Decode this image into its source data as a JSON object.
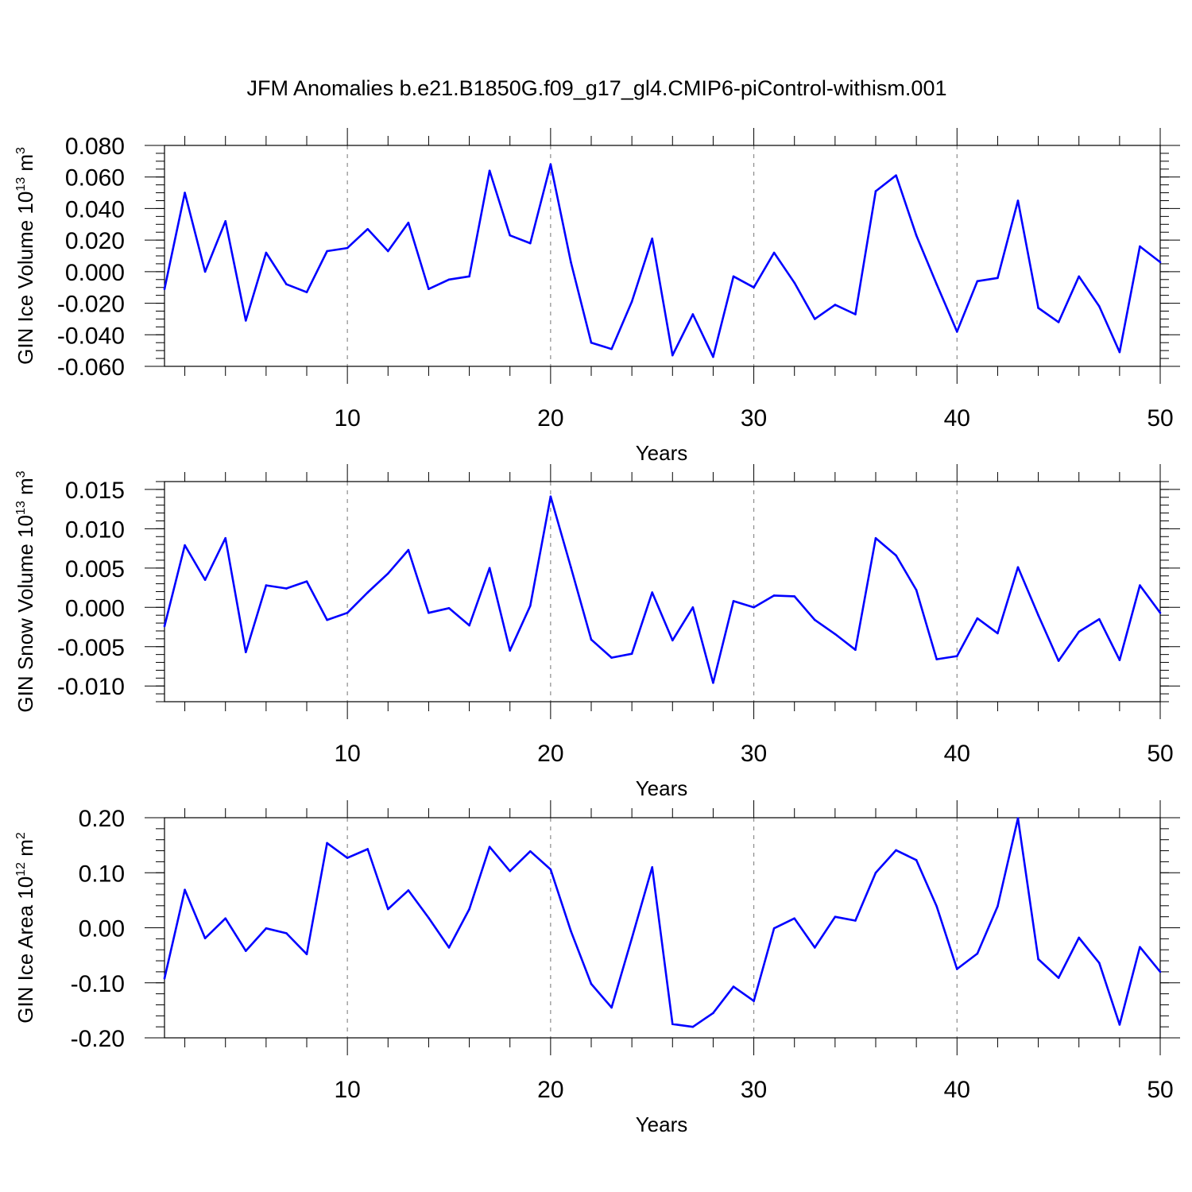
{
  "title": "JFM Anomalies b.e21.B1850G.f09_g17_gl4.CMIP6-piControl-withism.001",
  "line_color": "#0000ff",
  "chart_data": [
    {
      "type": "line",
      "title": "",
      "xlabel": "Years",
      "ylabel": {
        "main": "GIN Ice Volume 10",
        "exp1": "13",
        "mid": " m",
        "exp2": "3"
      },
      "xlim": [
        1,
        50
      ],
      "ylim": [
        -0.06,
        0.08
      ],
      "xticks": [
        10,
        20,
        30,
        40,
        50
      ],
      "yticks": [
        -0.06,
        -0.04,
        -0.02,
        0.0,
        0.02,
        0.04,
        0.06,
        0.08
      ],
      "ytick_labels": [
        "-0.060",
        "-0.040",
        "-0.020",
        "0.000",
        "0.020",
        "0.040",
        "0.060",
        "0.080"
      ],
      "y_minor_step": 0.005,
      "grid": "vertical dashed at major x ticks",
      "x": [
        1,
        2,
        3,
        4,
        5,
        6,
        7,
        8,
        9,
        10,
        11,
        12,
        13,
        14,
        15,
        16,
        17,
        18,
        19,
        20,
        21,
        22,
        23,
        24,
        25,
        26,
        27,
        28,
        29,
        30,
        31,
        32,
        33,
        34,
        35,
        36,
        37,
        38,
        39,
        40,
        41,
        42,
        43,
        44,
        45,
        46,
        47,
        48,
        49,
        50
      ],
      "values": [
        -0.011,
        0.05,
        0.0,
        0.032,
        -0.031,
        0.012,
        -0.008,
        -0.013,
        0.013,
        0.015,
        0.027,
        0.013,
        0.031,
        -0.011,
        -0.005,
        -0.003,
        0.064,
        0.023,
        0.018,
        0.068,
        0.006,
        -0.045,
        -0.049,
        -0.019,
        0.021,
        -0.053,
        -0.027,
        -0.054,
        -0.003,
        -0.01,
        0.012,
        -0.007,
        -0.03,
        -0.021,
        -0.027,
        0.051,
        0.061,
        0.023,
        -0.008,
        -0.038,
        -0.006,
        -0.004,
        0.045,
        -0.023,
        -0.032,
        -0.003,
        -0.022,
        -0.051,
        0.016,
        0.006
      ]
    },
    {
      "type": "line",
      "title": "",
      "xlabel": "Years",
      "ylabel": {
        "main": "GIN Snow Volume 10",
        "exp1": "13",
        "mid": " m",
        "exp2": "3"
      },
      "xlim": [
        1,
        50
      ],
      "ylim": [
        -0.012,
        0.016
      ],
      "xticks": [
        10,
        20,
        30,
        40,
        50
      ],
      "yticks": [
        -0.01,
        -0.005,
        0.0,
        0.005,
        0.01,
        0.015
      ],
      "ytick_labels": [
        "-0.010",
        "-0.005",
        "0.000",
        "0.005",
        "0.010",
        "0.015"
      ],
      "y_minor_step": 0.001,
      "grid": "vertical dashed at major x ticks",
      "x": [
        1,
        2,
        3,
        4,
        5,
        6,
        7,
        8,
        9,
        10,
        11,
        12,
        13,
        14,
        15,
        16,
        17,
        18,
        19,
        20,
        21,
        22,
        23,
        24,
        25,
        26,
        27,
        28,
        29,
        30,
        31,
        32,
        33,
        34,
        35,
        36,
        37,
        38,
        39,
        40,
        41,
        42,
        43,
        44,
        45,
        46,
        47,
        48,
        49,
        50
      ],
      "values": [
        -0.0024,
        0.0079,
        0.0035,
        0.0088,
        -0.0057,
        0.0028,
        0.0024,
        0.0033,
        -0.0016,
        -0.0007,
        0.0019,
        0.0043,
        0.0073,
        -0.0007,
        -0.0001,
        -0.0023,
        0.005,
        -0.0055,
        0.0002,
        0.0141,
        0.0051,
        -0.0041,
        -0.0064,
        -0.0059,
        0.0019,
        -0.0042,
        0.0,
        -0.0096,
        0.0008,
        0.0,
        0.0015,
        0.0014,
        -0.0016,
        -0.0034,
        -0.0054,
        0.0088,
        0.0066,
        0.0022,
        -0.0066,
        -0.0062,
        -0.0014,
        -0.0033,
        0.0051,
        -0.001,
        -0.0068,
        -0.0031,
        -0.0015,
        -0.0067,
        0.0028,
        -0.0007
      ]
    },
    {
      "type": "line",
      "title": "",
      "xlabel": "Years",
      "ylabel": {
        "main": "GIN Ice Area 10",
        "exp1": "12",
        "mid": " m",
        "exp2": "2"
      },
      "xlim": [
        1,
        50
      ],
      "ylim": [
        -0.2,
        0.2
      ],
      "xticks": [
        10,
        20,
        30,
        40,
        50
      ],
      "yticks": [
        -0.2,
        -0.1,
        0.0,
        0.1,
        0.2
      ],
      "ytick_labels": [
        "-0.20",
        "-0.10",
        "0.00",
        "0.10",
        "0.20"
      ],
      "y_minor_step": 0.02,
      "grid": "vertical dashed at major x ticks",
      "x": [
        1,
        2,
        3,
        4,
        5,
        6,
        7,
        8,
        9,
        10,
        11,
        12,
        13,
        14,
        15,
        16,
        17,
        18,
        19,
        20,
        21,
        22,
        23,
        24,
        25,
        26,
        27,
        28,
        29,
        30,
        31,
        32,
        33,
        34,
        35,
        36,
        37,
        38,
        39,
        40,
        41,
        42,
        43,
        44,
        45,
        46,
        47,
        48,
        49,
        50
      ],
      "values": [
        -0.092,
        0.069,
        -0.019,
        0.017,
        -0.042,
        -0.001,
        -0.01,
        -0.048,
        0.154,
        0.127,
        0.143,
        0.034,
        0.068,
        0.018,
        -0.036,
        0.034,
        0.147,
        0.103,
        0.139,
        0.106,
        -0.006,
        -0.102,
        -0.145,
        -0.019,
        0.11,
        -0.175,
        -0.18,
        -0.155,
        -0.107,
        -0.133,
        -0.001,
        0.017,
        -0.036,
        0.02,
        0.013,
        0.1,
        0.141,
        0.123,
        0.039,
        -0.075,
        -0.047,
        0.039,
        0.199,
        -0.057,
        -0.091,
        -0.018,
        -0.064,
        -0.176,
        -0.035,
        -0.08
      ]
    }
  ]
}
